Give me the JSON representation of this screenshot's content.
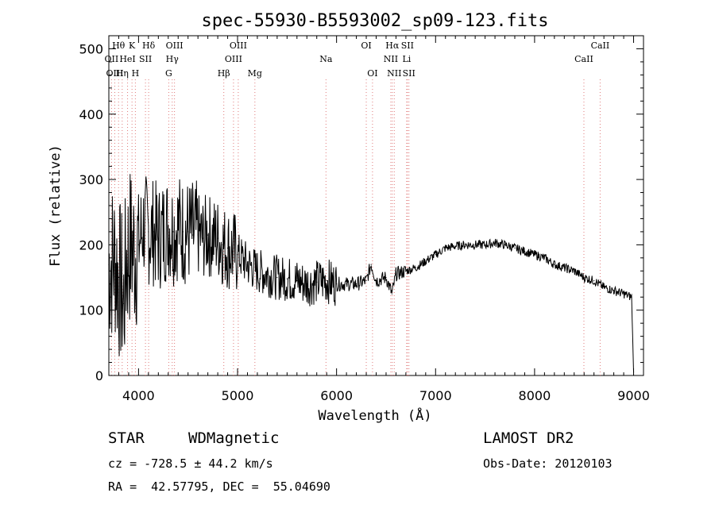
{
  "chart_data": {
    "type": "line",
    "title": "spec-55930-B5593002_sp09-123.fits",
    "xlabel": "Wavelength (Å)",
    "ylabel": "Flux (relative)",
    "xlim": [
      3700,
      9100
    ],
    "ylim": [
      0,
      520
    ],
    "x_ticks": [
      "4000",
      "5000",
      "6000",
      "7000",
      "8000",
      "9000"
    ],
    "y_ticks": [
      "0",
      "100",
      "200",
      "300",
      "400",
      "500"
    ],
    "series": [
      {
        "x": [
          3700,
          3760,
          3800,
          3830,
          3850,
          3880,
          3920,
          3960,
          4000,
          4050,
          4100,
          4150,
          4200,
          4250,
          4300,
          4350,
          4400,
          4450,
          4500,
          4550,
          4600,
          4650,
          4700,
          4750,
          4800,
          4850,
          4900,
          4950,
          5000,
          5100,
          5200,
          5300,
          5400,
          5500,
          5600,
          5700,
          5800,
          5900,
          6000,
          6100,
          6200,
          6300,
          6350,
          6400,
          6500,
          6560,
          6600,
          6700,
          6800,
          6900,
          7000,
          7100,
          7200,
          7300,
          7400,
          7500,
          7600,
          7700,
          7800,
          7900,
          8000,
          8100,
          8200,
          8300,
          8400,
          8500,
          8600,
          8700,
          8800,
          8900,
          8980,
          9000
        ],
        "y": [
          170,
          180,
          150,
          130,
          110,
          180,
          200,
          190,
          200,
          230,
          220,
          220,
          210,
          220,
          230,
          220,
          230,
          220,
          220,
          215,
          215,
          210,
          215,
          210,
          210,
          200,
          195,
          190,
          185,
          170,
          160,
          155,
          150,
          148,
          145,
          140,
          143,
          145,
          140,
          140,
          140,
          145,
          170,
          145,
          150,
          125,
          155,
          160,
          165,
          175,
          185,
          195,
          198,
          200,
          200,
          200,
          203,
          200,
          195,
          190,
          185,
          180,
          170,
          165,
          160,
          150,
          145,
          135,
          130,
          125,
          120,
          5
        ]
      }
    ],
    "spectral_lines": [
      {
        "name": "Hθ",
        "wl": 3798,
        "row": 1
      },
      {
        "name": "OII",
        "wl": 3727,
        "row": 2
      },
      {
        "name": "OIII",
        "wl": 3760,
        "row": 3
      },
      {
        "name": "Hη",
        "wl": 3835,
        "row": 3
      },
      {
        "name": "HeI",
        "wl": 3889,
        "row": 2
      },
      {
        "name": "K",
        "wl": 3934,
        "row": 1
      },
      {
        "name": "SII",
        "wl": 4070,
        "row": 2
      },
      {
        "name": "H",
        "wl": 3968,
        "row": 3
      },
      {
        "name": "Hδ",
        "wl": 4102,
        "row": 1
      },
      {
        "name": "OIII",
        "wl": 4363,
        "row": 1
      },
      {
        "name": "Hγ",
        "wl": 4340,
        "row": 2
      },
      {
        "name": "G",
        "wl": 4305,
        "row": 3
      },
      {
        "name": "Hβ",
        "wl": 4861,
        "row": 3
      },
      {
        "name": "OIII",
        "wl": 5007,
        "row": 1
      },
      {
        "name": "OIII",
        "wl": 4959,
        "row": 2
      },
      {
        "name": "Mg",
        "wl": 5175,
        "row": 3
      },
      {
        "name": "Na",
        "wl": 5893,
        "row": 2
      },
      {
        "name": "OI",
        "wl": 6300,
        "row": 1
      },
      {
        "name": "OI",
        "wl": 6363,
        "row": 3
      },
      {
        "name": "Hα",
        "wl": 6563,
        "row": 1
      },
      {
        "name": "NII",
        "wl": 6548,
        "row": 2
      },
      {
        "name": "NII",
        "wl": 6583,
        "row": 3
      },
      {
        "name": "SII",
        "wl": 6716,
        "row": 1
      },
      {
        "name": "Li",
        "wl": 6708,
        "row": 2
      },
      {
        "name": "SII",
        "wl": 6731,
        "row": 3
      },
      {
        "name": "CaII",
        "wl": 8662,
        "row": 1
      },
      {
        "name": "CaII",
        "wl": 8498,
        "row": 2
      }
    ]
  },
  "info": {
    "object_class": "STAR",
    "subclass": "WDMagnetic",
    "survey": "LAMOST DR2",
    "redshift": "cz = -728.5 ± 44.2 km/s",
    "obs_date": "Obs-Date: 20120103",
    "coords": "RA =  42.57795, DEC =  55.04690"
  }
}
